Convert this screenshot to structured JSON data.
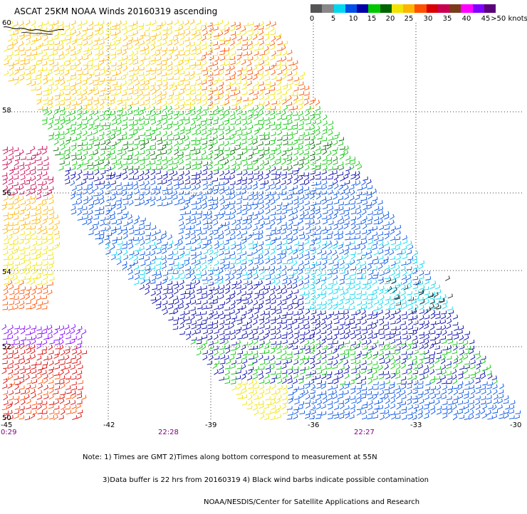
{
  "title": "ASCAT 25KM NOAA Winds 20160319 ascending",
  "legend": {
    "colors": [
      "#555555",
      "#888888",
      "#00d8f0",
      "#0050e8",
      "#0000a8",
      "#00c800",
      "#006400",
      "#f0e400",
      "#ffb400",
      "#ff5000",
      "#d80000",
      "#c80050",
      "#7a3b1a",
      "#ff00ff",
      "#8000ff",
      "#5a0078"
    ],
    "labels": [
      "0",
      "5",
      "10",
      "15",
      "20",
      "25",
      "30",
      "35",
      "40",
      "45",
      ">50 knots"
    ]
  },
  "axes": {
    "lat_labels": [
      "60",
      "58",
      "56",
      "54",
      "52",
      "50"
    ],
    "lon_labels": [
      "-45",
      "-42",
      "-39",
      "-36",
      "-33",
      "-30"
    ],
    "time_labels": [
      "0:29",
      "22:28",
      "22:27"
    ]
  },
  "notes": [
    "Note: 1) Times are GMT 2)Times along bottom correspond to measurement at 55N",
    "3)Data buffer is 22 hrs from 20160319 4) Black wind barbs indicate possible contamination",
    "NOAA/NESDIS/Center for Satellite Applications and Research"
  ]
}
